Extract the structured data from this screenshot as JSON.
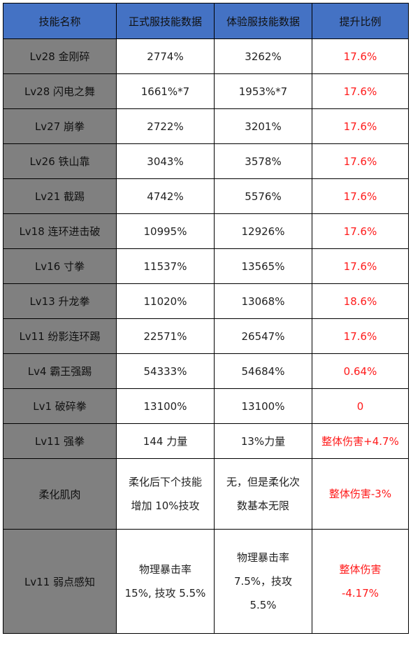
{
  "headers": [
    "技能名称",
    "正式服技能数据",
    "体验服技能数据",
    "提升比例"
  ],
  "rows": [
    {
      "name": "Lv28 金刚碎",
      "live": "2774%",
      "test": "3262%",
      "ratio": "17.6%"
    },
    {
      "name": "Lv28 闪电之舞",
      "live": "1661%*7",
      "test": "1953%*7",
      "ratio": "17.6%"
    },
    {
      "name": "Lv27 崩拳",
      "live": "2722%",
      "test": "3201%",
      "ratio": "17.6%"
    },
    {
      "name": "Lv26 铁山靠",
      "live": "3043%",
      "test": "3578%",
      "ratio": "17.6%"
    },
    {
      "name": "Lv21 截踢",
      "live": "4742%",
      "test": "5576%",
      "ratio": "17.6%"
    },
    {
      "name": "Lv18 连环进击破",
      "live": "10995%",
      "test": "12926%",
      "ratio": "17.6%"
    },
    {
      "name": "Lv16 寸拳",
      "live": "11537%",
      "test": "13565%",
      "ratio": "17.6%"
    },
    {
      "name": "Lv13 升龙拳",
      "live": "11020%",
      "test": "13068%",
      "ratio": "18.6%"
    },
    {
      "name": "Lv11 纷影连环踢",
      "live": "22571%",
      "test": "26547%",
      "ratio": "17.6%"
    },
    {
      "name": "Lv4 霸王强踢",
      "live": "54333%",
      "test": "54684%",
      "ratio": "0.64%"
    },
    {
      "name": "Lv1 破碎拳",
      "live": "13100%",
      "test": "13100%",
      "ratio": "0"
    },
    {
      "name": "Lv11 强拳",
      "live": "144 力量",
      "test": "13%力量",
      "ratio": "整体伤害+4.7%"
    }
  ],
  "special": [
    {
      "name": "柔化肌肉",
      "live": [
        "柔化后下个技能",
        "增加 10%技攻"
      ],
      "test": [
        "无，但是柔化次",
        "数基本无限"
      ],
      "ratio": [
        "整体伤害-3%"
      ]
    },
    {
      "name": "Lv11 弱点感知",
      "live": [
        "物理暴击率",
        "15%, 技攻 5.5%"
      ],
      "test": [
        "物理暴击率",
        "7.5%，技攻",
        "5.5%"
      ],
      "ratio": [
        "整体伤害",
        "-4.17%"
      ]
    }
  ],
  "colors": {
    "header_bg": "#4472c4",
    "name_bg": "#808080",
    "ratio_text": "#ff1a1a"
  }
}
